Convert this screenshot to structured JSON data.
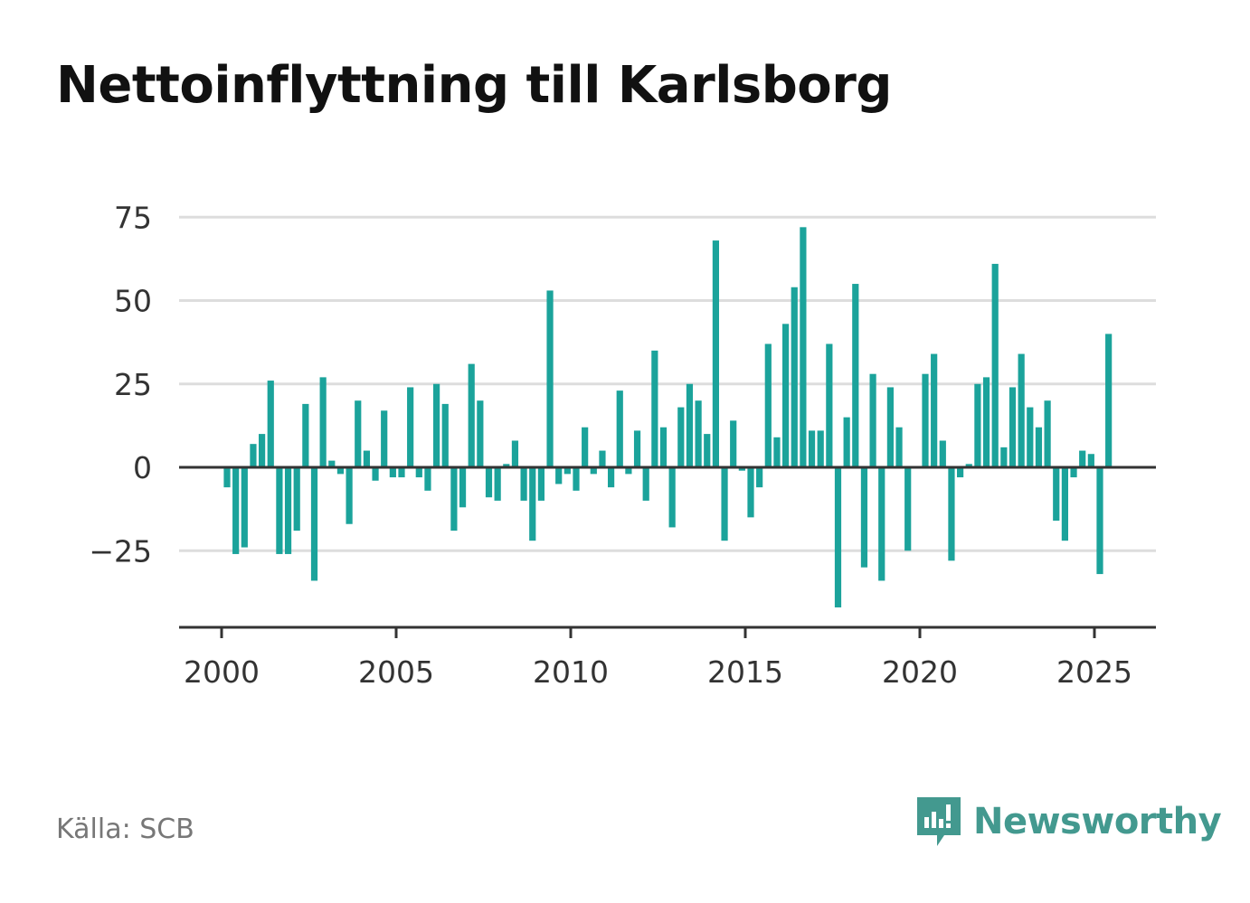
{
  "title": "Nettoinflyttning till Karlsborg",
  "source": "Källa: SCB",
  "brand": {
    "name": "Newsworthy",
    "icon": "newsworthy-logo-icon",
    "color": "#43998f"
  },
  "colors": {
    "bar": "#1ba39b",
    "grid": "#dddddd",
    "zero": "#333333",
    "axis": "#333333"
  },
  "chart_data": {
    "type": "bar",
    "title": "Nettoinflyttning till Karlsborg",
    "xlabel": "",
    "ylabel": "",
    "frequency": "quarterly",
    "x_start": 2000,
    "x_ticks": [
      "2000",
      "2005",
      "2010",
      "2015",
      "2020",
      "2025"
    ],
    "y_ticks": [
      "75",
      "50",
      "25",
      "0",
      "−25"
    ],
    "ylim": [
      -48,
      75
    ],
    "xlim": [
      1999.88,
      2025.63
    ],
    "grid": true,
    "values": [
      -6,
      -26,
      -24,
      7,
      10,
      26,
      -26,
      -26,
      -19,
      19,
      -34,
      27,
      2,
      -2,
      -17,
      20,
      5,
      -4,
      17,
      -3,
      -3,
      24,
      -3,
      -7,
      25,
      19,
      -19,
      -12,
      31,
      20,
      -9,
      -10,
      1,
      8,
      -10,
      -22,
      -10,
      53,
      -5,
      -2,
      -7,
      12,
      -2,
      5,
      -6,
      23,
      -2,
      11,
      -10,
      35,
      12,
      -18,
      18,
      25,
      20,
      10,
      68,
      -22,
      14,
      -1,
      -15,
      -6,
      37,
      9,
      43,
      54,
      72,
      11,
      11,
      37,
      -42,
      15,
      55,
      -30,
      28,
      -34,
      24,
      12,
      -25,
      0,
      28,
      34,
      8,
      -28,
      -3,
      1,
      25,
      27,
      61,
      6,
      24,
      34,
      18,
      12,
      20,
      -16,
      -22,
      -3,
      5,
      4,
      -32,
      40
    ]
  }
}
